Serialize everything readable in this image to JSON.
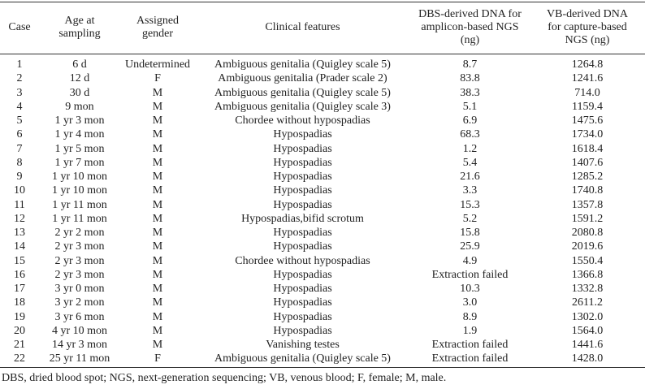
{
  "table": {
    "header": [
      [
        "Case"
      ],
      [
        "Age at",
        "sampling"
      ],
      [
        "Assigned",
        "gender"
      ],
      [
        "Clinical features"
      ],
      [
        "DBS-derived DNA for",
        "amplicon-based NGS",
        "(ng)"
      ],
      [
        "VB-derived DNA",
        "for capture-based",
        "NGS (ng)"
      ]
    ],
    "rows": [
      [
        "1",
        "6 d",
        "Undetermined",
        "Ambiguous genitalia (Quigley scale 5)",
        "8.7",
        "1264.8"
      ],
      [
        "2",
        "12 d",
        "F",
        "Ambiguous genitalia (Prader scale 2)",
        "83.8",
        "1241.6"
      ],
      [
        "3",
        "30 d",
        "M",
        "Ambiguous genitalia (Quigley scale 5)",
        "38.3",
        "714.0"
      ],
      [
        "4",
        "9 mon",
        "M",
        "Ambiguous genitalia (Quigley scale 3)",
        "5.1",
        "1159.4"
      ],
      [
        "5",
        "1 yr 3 mon",
        "M",
        "Chordee without hypospadias",
        "6.9",
        "1475.6"
      ],
      [
        "6",
        "1 yr 4 mon",
        "M",
        "Hypospadias",
        "68.3",
        "1734.0"
      ],
      [
        "7",
        "1 yr 5 mon",
        "M",
        "Hypospadias",
        "1.2",
        "1618.4"
      ],
      [
        "8",
        "1 yr 7 mon",
        "M",
        "Hypospadias",
        "5.4",
        "1407.6"
      ],
      [
        "9",
        "1 yr 10 mon",
        "M",
        "Hypospadias",
        "21.6",
        "1285.2"
      ],
      [
        "10",
        "1 yr 10 mon",
        "M",
        "Hypospadias",
        "3.3",
        "1740.8"
      ],
      [
        "11",
        "1 yr 11 mon",
        "M",
        "Hypospadias",
        "15.3",
        "1357.8"
      ],
      [
        "12",
        "1 yr 11 mon",
        "M",
        "Hypospadias,bifid scrotum",
        "5.2",
        "1591.2"
      ],
      [
        "13",
        "2 yr 2 mon",
        "M",
        "Hypospadias",
        "15.8",
        "2080.8"
      ],
      [
        "14",
        "2 yr 3 mon",
        "M",
        "Hypospadias",
        "25.9",
        "2019.6"
      ],
      [
        "15",
        "2 yr 3 mon",
        "M",
        "Chordee without hypospadias",
        "4.9",
        "1550.4"
      ],
      [
        "16",
        "2 yr 3 mon",
        "M",
        "Hypospadias",
        "Extraction failed",
        "1366.8"
      ],
      [
        "17",
        "3 yr 0 mon",
        "M",
        "Hypospadias",
        "10.3",
        "1332.8"
      ],
      [
        "18",
        "3 yr 2 mon",
        "M",
        "Hypospadias",
        "3.0",
        "2611.2"
      ],
      [
        "19",
        "3 yr 6 mon",
        "M",
        "Hypospadias",
        "8.9",
        "1302.0"
      ],
      [
        "20",
        "4 yr 10 mon",
        "M",
        "Hypospadias",
        "1.9",
        "1564.0"
      ],
      [
        "21",
        "14 yr 3 mon",
        "M",
        "Vanishing testes",
        "Extraction failed",
        "1441.6"
      ],
      [
        "22",
        "25 yr 11 mon",
        "F",
        "Ambiguous genitalia (Quigley scale 5)",
        "Extraction failed",
        "1428.0"
      ]
    ],
    "footnote": "DBS, dried blood spot; NGS, next-generation sequencing; VB, venous blood; F, female; M, male."
  }
}
